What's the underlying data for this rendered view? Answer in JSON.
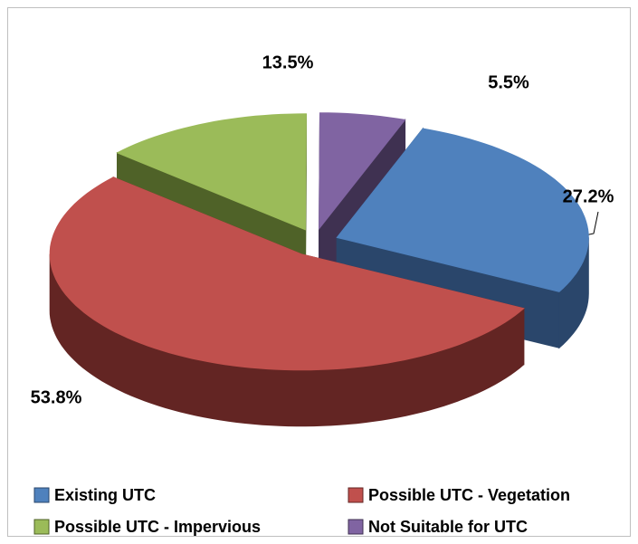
{
  "chart_data": {
    "type": "pie",
    "three_d": true,
    "exploded": true,
    "categories": [
      "Existing UTC",
      "Possible UTC - Vegetation",
      "Possible UTC - Impervious",
      "Not Suitable for UTC"
    ],
    "values": [
      27.2,
      53.8,
      13.5,
      5.5
    ],
    "value_labels": [
      "27.2%",
      "53.8%",
      "13.5%",
      "5.5%"
    ],
    "colors": [
      "#4f81bd",
      "#c0504d",
      "#9bbb59",
      "#8064a2"
    ],
    "side_colors": [
      "#2a466b",
      "#632523",
      "#4f6228",
      "#3f3151"
    ],
    "legend": "bottom"
  }
}
